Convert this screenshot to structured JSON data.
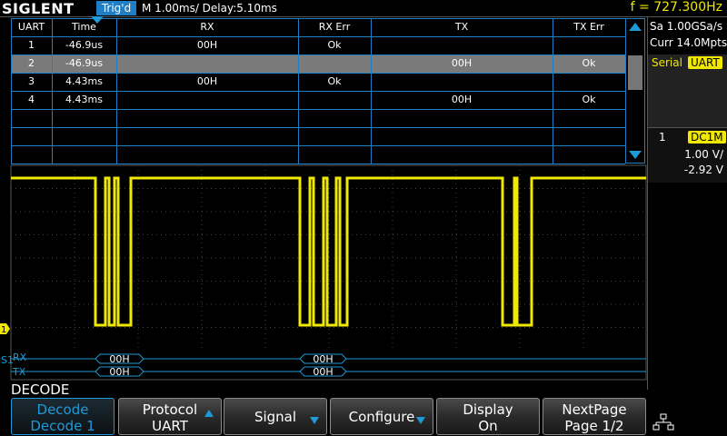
{
  "header": {
    "brand": "SIGLENT",
    "trigger": "Trig'd",
    "timebase": "M 1.00ms/ Delay:5.10ms",
    "frequency": "f = 727.300Hz"
  },
  "table": {
    "columns": [
      "UART",
      "Time",
      "RX",
      "RX Err",
      "TX",
      "TX Err"
    ],
    "rows": [
      {
        "uart": "1",
        "time": "-46.9us",
        "rx": "00H",
        "rx_err": "Ok"
      },
      {
        "uart": "2",
        "time": "-46.9us",
        "tx": "00H",
        "tx_err": "Ok"
      },
      {
        "uart": "3",
        "time": "4.43ms",
        "rx": "00H",
        "rx_err": "Ok"
      },
      {
        "uart": "4",
        "time": "4.43ms",
        "tx": "00H",
        "tx_err": "Ok"
      }
    ]
  },
  "side_panel": {
    "sample_rate": "Sa 1.00GSa/s",
    "memory": "Curr 14.0Mpts",
    "mode": "Serial",
    "protocol": "UART",
    "channel": "1",
    "coupling": "DC1M",
    "scale": "1.00 V/",
    "offset": "-2.92 V"
  },
  "waveform": {
    "channel_marker": "1",
    "bus_marker": "S1"
  },
  "bus": {
    "rx_label": "RX",
    "tx_label": "TX",
    "rx_frames": [
      "00H",
      "00H"
    ],
    "tx_frames": [
      "00H",
      "00H"
    ]
  },
  "menu": {
    "title": "DECODE",
    "buttons": [
      [
        "Decode",
        "Decode 1"
      ],
      [
        "Protocol",
        "UART"
      ],
      [
        "Signal"
      ],
      [
        "Configure"
      ],
      [
        "Display",
        "On"
      ],
      [
        "NextPage",
        "Page 1/2"
      ]
    ]
  }
}
